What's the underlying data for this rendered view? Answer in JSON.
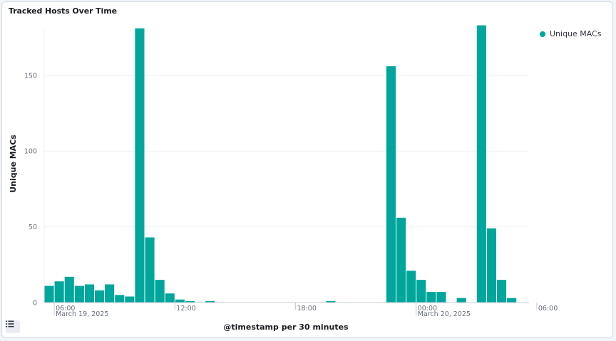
{
  "panel": {
    "title": "Tracked Hosts Over Time",
    "legend_icon": "list-icon"
  },
  "colors": {
    "bar": "#00a69b",
    "grid": "#eef0f3",
    "axis": "#c7ccd4"
  },
  "chart_data": {
    "type": "bar",
    "title": "Tracked Hosts Over Time",
    "xlabel": "@timestamp per 30 minutes",
    "ylabel": "Unique MACs",
    "ylim": [
      0,
      180
    ],
    "grid": true,
    "legend_position": "top-right",
    "x_interval_minutes": 30,
    "x_range": [
      "2025-03-19 05:30",
      "2025-03-20 13:30"
    ],
    "y_ticks": [
      0,
      50,
      100,
      150
    ],
    "x_ticks": [
      {
        "time": "2025-03-19 06:00",
        "label": "06:00",
        "sublabel": "March 19, 2025"
      },
      {
        "time": "2025-03-19 12:00",
        "label": "12:00",
        "sublabel": ""
      },
      {
        "time": "2025-03-19 18:00",
        "label": "18:00",
        "sublabel": ""
      },
      {
        "time": "2025-03-20 00:00",
        "label": "00:00",
        "sublabel": "March 20, 2025"
      },
      {
        "time": "2025-03-20 06:00",
        "label": "06:00",
        "sublabel": ""
      }
    ],
    "series": [
      {
        "name": "Unique MACs",
        "color": "#00a69b",
        "points": [
          [
            "2025-03-19 05:30",
            11
          ],
          [
            "2025-03-19 06:00",
            14
          ],
          [
            "2025-03-19 06:30",
            17
          ],
          [
            "2025-03-19 07:00",
            11
          ],
          [
            "2025-03-19 07:30",
            12
          ],
          [
            "2025-03-19 08:00",
            8
          ],
          [
            "2025-03-19 08:30",
            12
          ],
          [
            "2025-03-19 09:00",
            5
          ],
          [
            "2025-03-19 09:30",
            4
          ],
          [
            "2025-03-19 10:00",
            181
          ],
          [
            "2025-03-19 10:30",
            43
          ],
          [
            "2025-03-19 11:00",
            15
          ],
          [
            "2025-03-19 11:30",
            6
          ],
          [
            "2025-03-19 12:00",
            2
          ],
          [
            "2025-03-19 12:30",
            1
          ],
          [
            "2025-03-19 13:30",
            1
          ],
          [
            "2025-03-19 19:30",
            1
          ],
          [
            "2025-03-19 22:30",
            156
          ],
          [
            "2025-03-19 23:00",
            56
          ],
          [
            "2025-03-19 23:30",
            21
          ],
          [
            "2025-03-20 00:00",
            15
          ],
          [
            "2025-03-20 00:30",
            7
          ],
          [
            "2025-03-20 01:00",
            7
          ],
          [
            "2025-03-20 02:00",
            3
          ],
          [
            "2025-03-20 03:00",
            183
          ],
          [
            "2025-03-20 03:30",
            49
          ],
          [
            "2025-03-20 04:00",
            15
          ],
          [
            "2025-03-20 04:30",
            3
          ]
        ]
      }
    ]
  }
}
